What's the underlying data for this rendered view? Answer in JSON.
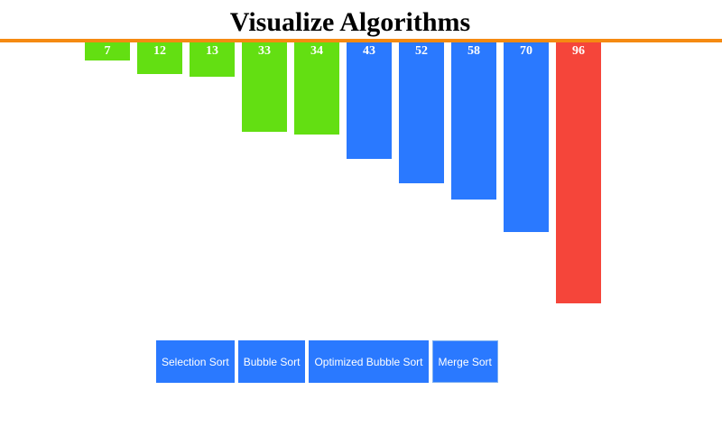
{
  "header": {
    "title": "Visualize Algorithms"
  },
  "colors": {
    "accent_rule": "#f58a12",
    "sorted_green": "#63df12",
    "unsorted_blue": "#2a79ff",
    "active_red": "#f5453a",
    "button_blue": "#2a79ff"
  },
  "chart_data": {
    "type": "bar",
    "values": [
      7,
      12,
      13,
      33,
      34,
      43,
      52,
      58,
      70,
      96
    ],
    "states": [
      "sorted",
      "sorted",
      "sorted",
      "sorted",
      "sorted",
      "unsorted",
      "unsorted",
      "unsorted",
      "unsorted",
      "active"
    ],
    "ylim": [
      0,
      100
    ],
    "labels": [
      "7",
      "12",
      "13",
      "33",
      "34",
      "43",
      "52",
      "58",
      "70",
      "96"
    ]
  },
  "controls": {
    "buttons": [
      {
        "id": "selection-sort",
        "label": "Selection Sort"
      },
      {
        "id": "bubble-sort",
        "label": "Bubble Sort"
      },
      {
        "id": "optimized-bubble-sort",
        "label": "Optimized Bubble Sort"
      },
      {
        "id": "merge-sort",
        "label": "Merge Sort"
      }
    ]
  }
}
